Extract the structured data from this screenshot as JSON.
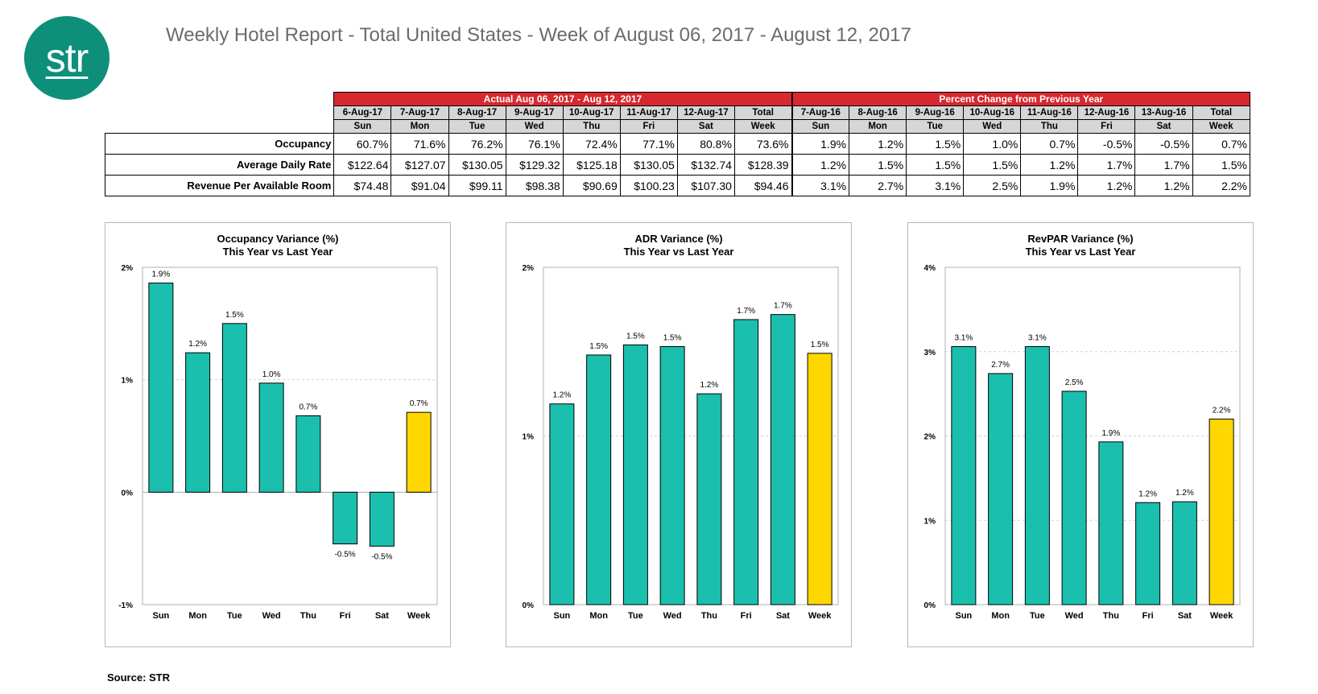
{
  "header": {
    "logo_text": "str",
    "title": "Weekly Hotel Report - Total United States - Week of August 06, 2017 - August 12, 2017"
  },
  "table": {
    "group_actual": "Actual Aug 06, 2017 - Aug 12, 2017",
    "group_pct": "Percent Change from Previous Year",
    "dates_actual": [
      "6-Aug-17",
      "7-Aug-17",
      "8-Aug-17",
      "9-Aug-17",
      "10-Aug-17",
      "11-Aug-17",
      "12-Aug-17",
      "Total"
    ],
    "days_actual": [
      "Sun",
      "Mon",
      "Tue",
      "Wed",
      "Thu",
      "Fri",
      "Sat",
      "Week"
    ],
    "dates_pct": [
      "7-Aug-16",
      "8-Aug-16",
      "9-Aug-16",
      "10-Aug-16",
      "11-Aug-16",
      "12-Aug-16",
      "13-Aug-16",
      "Total"
    ],
    "days_pct": [
      "Sun",
      "Mon",
      "Tue",
      "Wed",
      "Thu",
      "Fri",
      "Sat",
      "Week"
    ],
    "rows": [
      {
        "label": "Occupancy",
        "actual": [
          "60.7%",
          "71.6%",
          "76.2%",
          "76.1%",
          "72.4%",
          "77.1%",
          "80.8%",
          "73.6%"
        ],
        "pct": [
          "1.9%",
          "1.2%",
          "1.5%",
          "1.0%",
          "0.7%",
          "-0.5%",
          "-0.5%",
          "0.7%"
        ]
      },
      {
        "label": "Average Daily Rate",
        "actual": [
          "$122.64",
          "$127.07",
          "$130.05",
          "$129.32",
          "$125.18",
          "$130.05",
          "$132.74",
          "$128.39"
        ],
        "pct": [
          "1.2%",
          "1.5%",
          "1.5%",
          "1.5%",
          "1.2%",
          "1.7%",
          "1.7%",
          "1.5%"
        ]
      },
      {
        "label": "Revenue Per Available Room",
        "actual": [
          "$74.48",
          "$91.04",
          "$99.11",
          "$98.38",
          "$90.69",
          "$100.23",
          "$107.30",
          "$94.46"
        ],
        "pct": [
          "3.1%",
          "2.7%",
          "3.1%",
          "2.5%",
          "1.9%",
          "1.2%",
          "1.2%",
          "2.2%"
        ]
      }
    ]
  },
  "colors": {
    "bar": "#1bbfad",
    "highlight": "#ffd700",
    "header_red": "#d7282f",
    "logo": "#0e8f7a"
  },
  "chart_data": [
    {
      "type": "bar",
      "title": "Occupancy Variance (%)",
      "subtitle": "This Year vs Last Year",
      "categories": [
        "Sun",
        "Mon",
        "Tue",
        "Wed",
        "Thu",
        "Fri",
        "Sat",
        "Week"
      ],
      "values": [
        1.86,
        1.24,
        1.5,
        0.97,
        0.68,
        -0.46,
        -0.48,
        0.71
      ],
      "labels": [
        "1.9%",
        "1.2%",
        "1.5%",
        "1.0%",
        "0.7%",
        "-0.5%",
        "-0.5%",
        "0.7%"
      ],
      "ylim": [
        -1,
        2
      ],
      "yticks": [
        -1,
        0,
        1,
        2
      ],
      "ytick_labels": [
        "-1%",
        "0%",
        "1%",
        "2%"
      ],
      "highlight_index": 7
    },
    {
      "type": "bar",
      "title": "ADR Variance (%)",
      "subtitle": "This Year vs Last Year",
      "categories": [
        "Sun",
        "Mon",
        "Tue",
        "Wed",
        "Thu",
        "Fri",
        "Sat",
        "Week"
      ],
      "values": [
        1.19,
        1.48,
        1.54,
        1.53,
        1.25,
        1.69,
        1.72,
        1.49
      ],
      "labels": [
        "1.2%",
        "1.5%",
        "1.5%",
        "1.5%",
        "1.2%",
        "1.7%",
        "1.7%",
        "1.5%"
      ],
      "ylim": [
        0,
        2
      ],
      "yticks": [
        0,
        1,
        2
      ],
      "ytick_labels": [
        "0%",
        "1%",
        "2%"
      ],
      "highlight_index": 7
    },
    {
      "type": "bar",
      "title": "RevPAR Variance (%)",
      "subtitle": "This Year vs Last Year",
      "categories": [
        "Sun",
        "Mon",
        "Tue",
        "Wed",
        "Thu",
        "Fri",
        "Sat",
        "Week"
      ],
      "values": [
        3.06,
        2.74,
        3.06,
        2.53,
        1.93,
        1.21,
        1.22,
        2.2
      ],
      "labels": [
        "3.1%",
        "2.7%",
        "3.1%",
        "2.5%",
        "1.9%",
        "1.2%",
        "1.2%",
        "2.2%"
      ],
      "ylim": [
        0,
        4
      ],
      "yticks": [
        0,
        1,
        2,
        3,
        4
      ],
      "ytick_labels": [
        "0%",
        "1%",
        "2%",
        "3%",
        "4%"
      ],
      "highlight_index": 7
    }
  ],
  "footer": {
    "source": "Source: STR"
  }
}
